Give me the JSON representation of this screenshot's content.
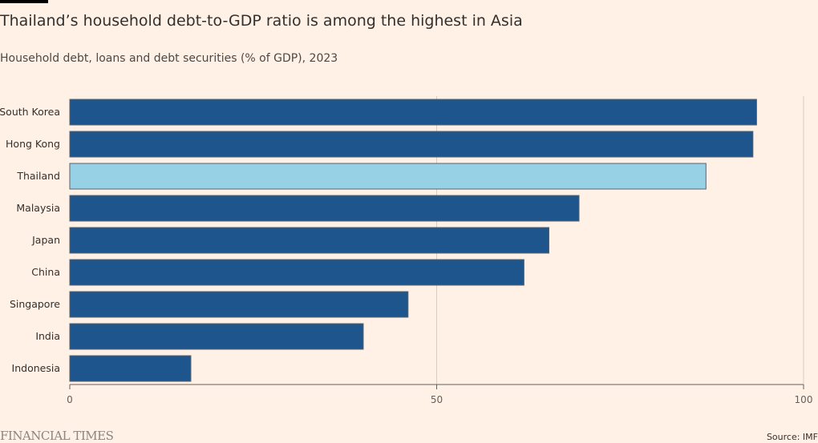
{
  "title": "Thailand’s household debt-to-GDP ratio is among the highest in Asia",
  "subtitle": "Household debt, loans and debt securities (% of GDP), 2023",
  "source": "Source: IMF",
  "logo": "FINANCIAL TIMES",
  "colors": {
    "default": "#1e558c",
    "highlight": "#96d1e6",
    "background": "#fff1e5"
  },
  "chart_data": {
    "type": "bar",
    "orientation": "horizontal",
    "categories": [
      "South Korea",
      "Hong Kong",
      "Thailand",
      "Malaysia",
      "Japan",
      "China",
      "Singapore",
      "India",
      "Indonesia"
    ],
    "values": [
      93.6,
      93.1,
      86.7,
      69.4,
      65.3,
      61.9,
      46.1,
      40.0,
      16.5
    ],
    "highlight": "Thailand",
    "xlim": [
      0,
      100
    ],
    "xticks": [
      "0",
      "50",
      "100"
    ],
    "grid": true
  }
}
